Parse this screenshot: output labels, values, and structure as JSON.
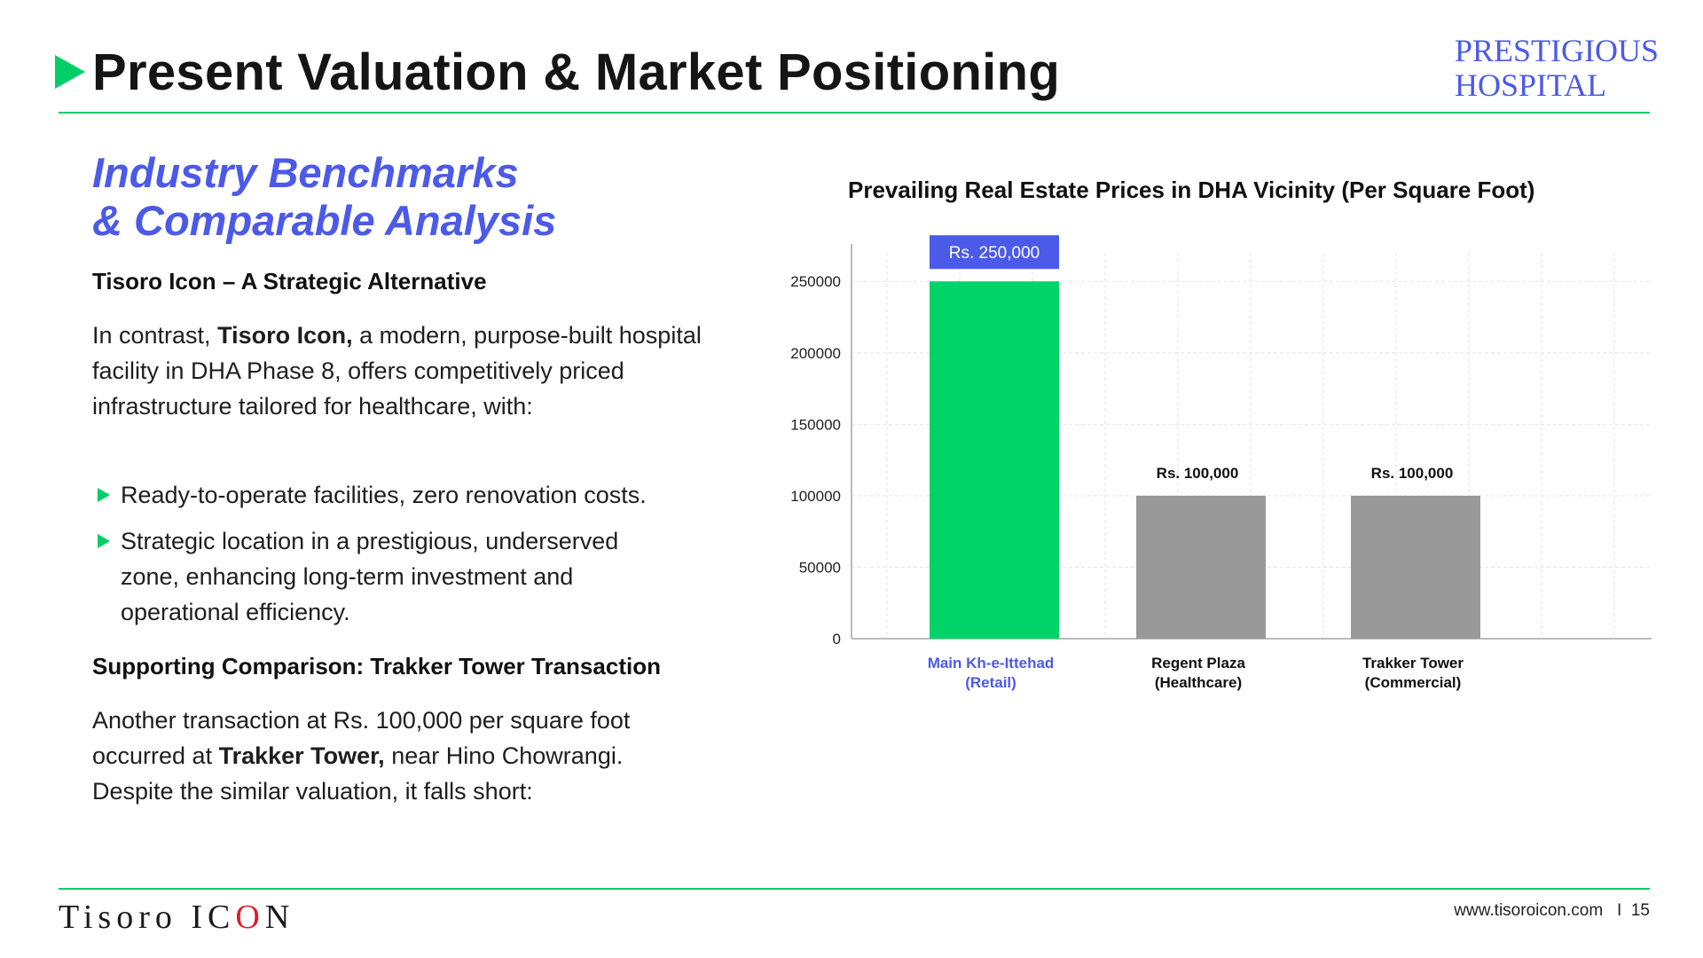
{
  "header": {
    "title": "Present Valuation & Market Positioning",
    "brand_line1": "PRESTIGIOUS",
    "brand_line2": "HOSPITAL",
    "accent_color": "#00cf67",
    "brand_color": "#4b5ae8"
  },
  "left": {
    "subheading_line1": "Industry Benchmarks",
    "subheading_line2": "& Comparable Analysis",
    "section1_title": "Tisoro Icon – A Strategic Alternative",
    "para1": {
      "pre": "In contrast, ",
      "bold": "Tisoro Icon,",
      "post": " a modern, purpose-built hospital facility in DHA Phase 8, offers competitively priced infrastructure tailored for healthcare, with:"
    },
    "bullets": [
      "Ready-to-operate facilities, zero renovation costs.",
      "Strategic location in a prestigious, underserved zone, enhancing long-term investment and operational efficiency."
    ],
    "section2_title": "Supporting Comparison: Trakker Tower Transaction",
    "para2": {
      "pre": "Another transaction at Rs. 100,000 per square foot occurred at ",
      "bold": "Trakker Tower,",
      "post": " near Hino Chowrangi. Despite the similar valuation, it falls short:"
    }
  },
  "chart_data": {
    "type": "bar",
    "title": "Prevailing Real Estate Prices in DHA Vicinity (Per Square Foot)",
    "categories": [
      [
        "Main Kh-e-Ittehad",
        "(Retail)"
      ],
      [
        "Regent Plaza",
        "(Healthcare)"
      ],
      [
        "Trakker Tower",
        "(Commercial)"
      ]
    ],
    "values": [
      250000,
      100000,
      100000
    ],
    "data_labels": [
      "Rs. 250,000",
      "Rs. 100,000",
      "Rs. 100,000"
    ],
    "yticks": [
      0,
      50000,
      100000,
      150000,
      200000,
      250000
    ],
    "ylim": [
      0,
      270000
    ],
    "grid": true,
    "colors": [
      "#00d469",
      "#999999",
      "#999999"
    ],
    "highlight_label_bg": "#4b5ae8",
    "highlight_category_color": "#4b5ae8"
  },
  "footer": {
    "logo_pre": "Tisoro IC",
    "logo_mark": "O",
    "logo_post": "N",
    "url": "www.tisoroicon.com",
    "separator": "I",
    "page_number": "15"
  }
}
